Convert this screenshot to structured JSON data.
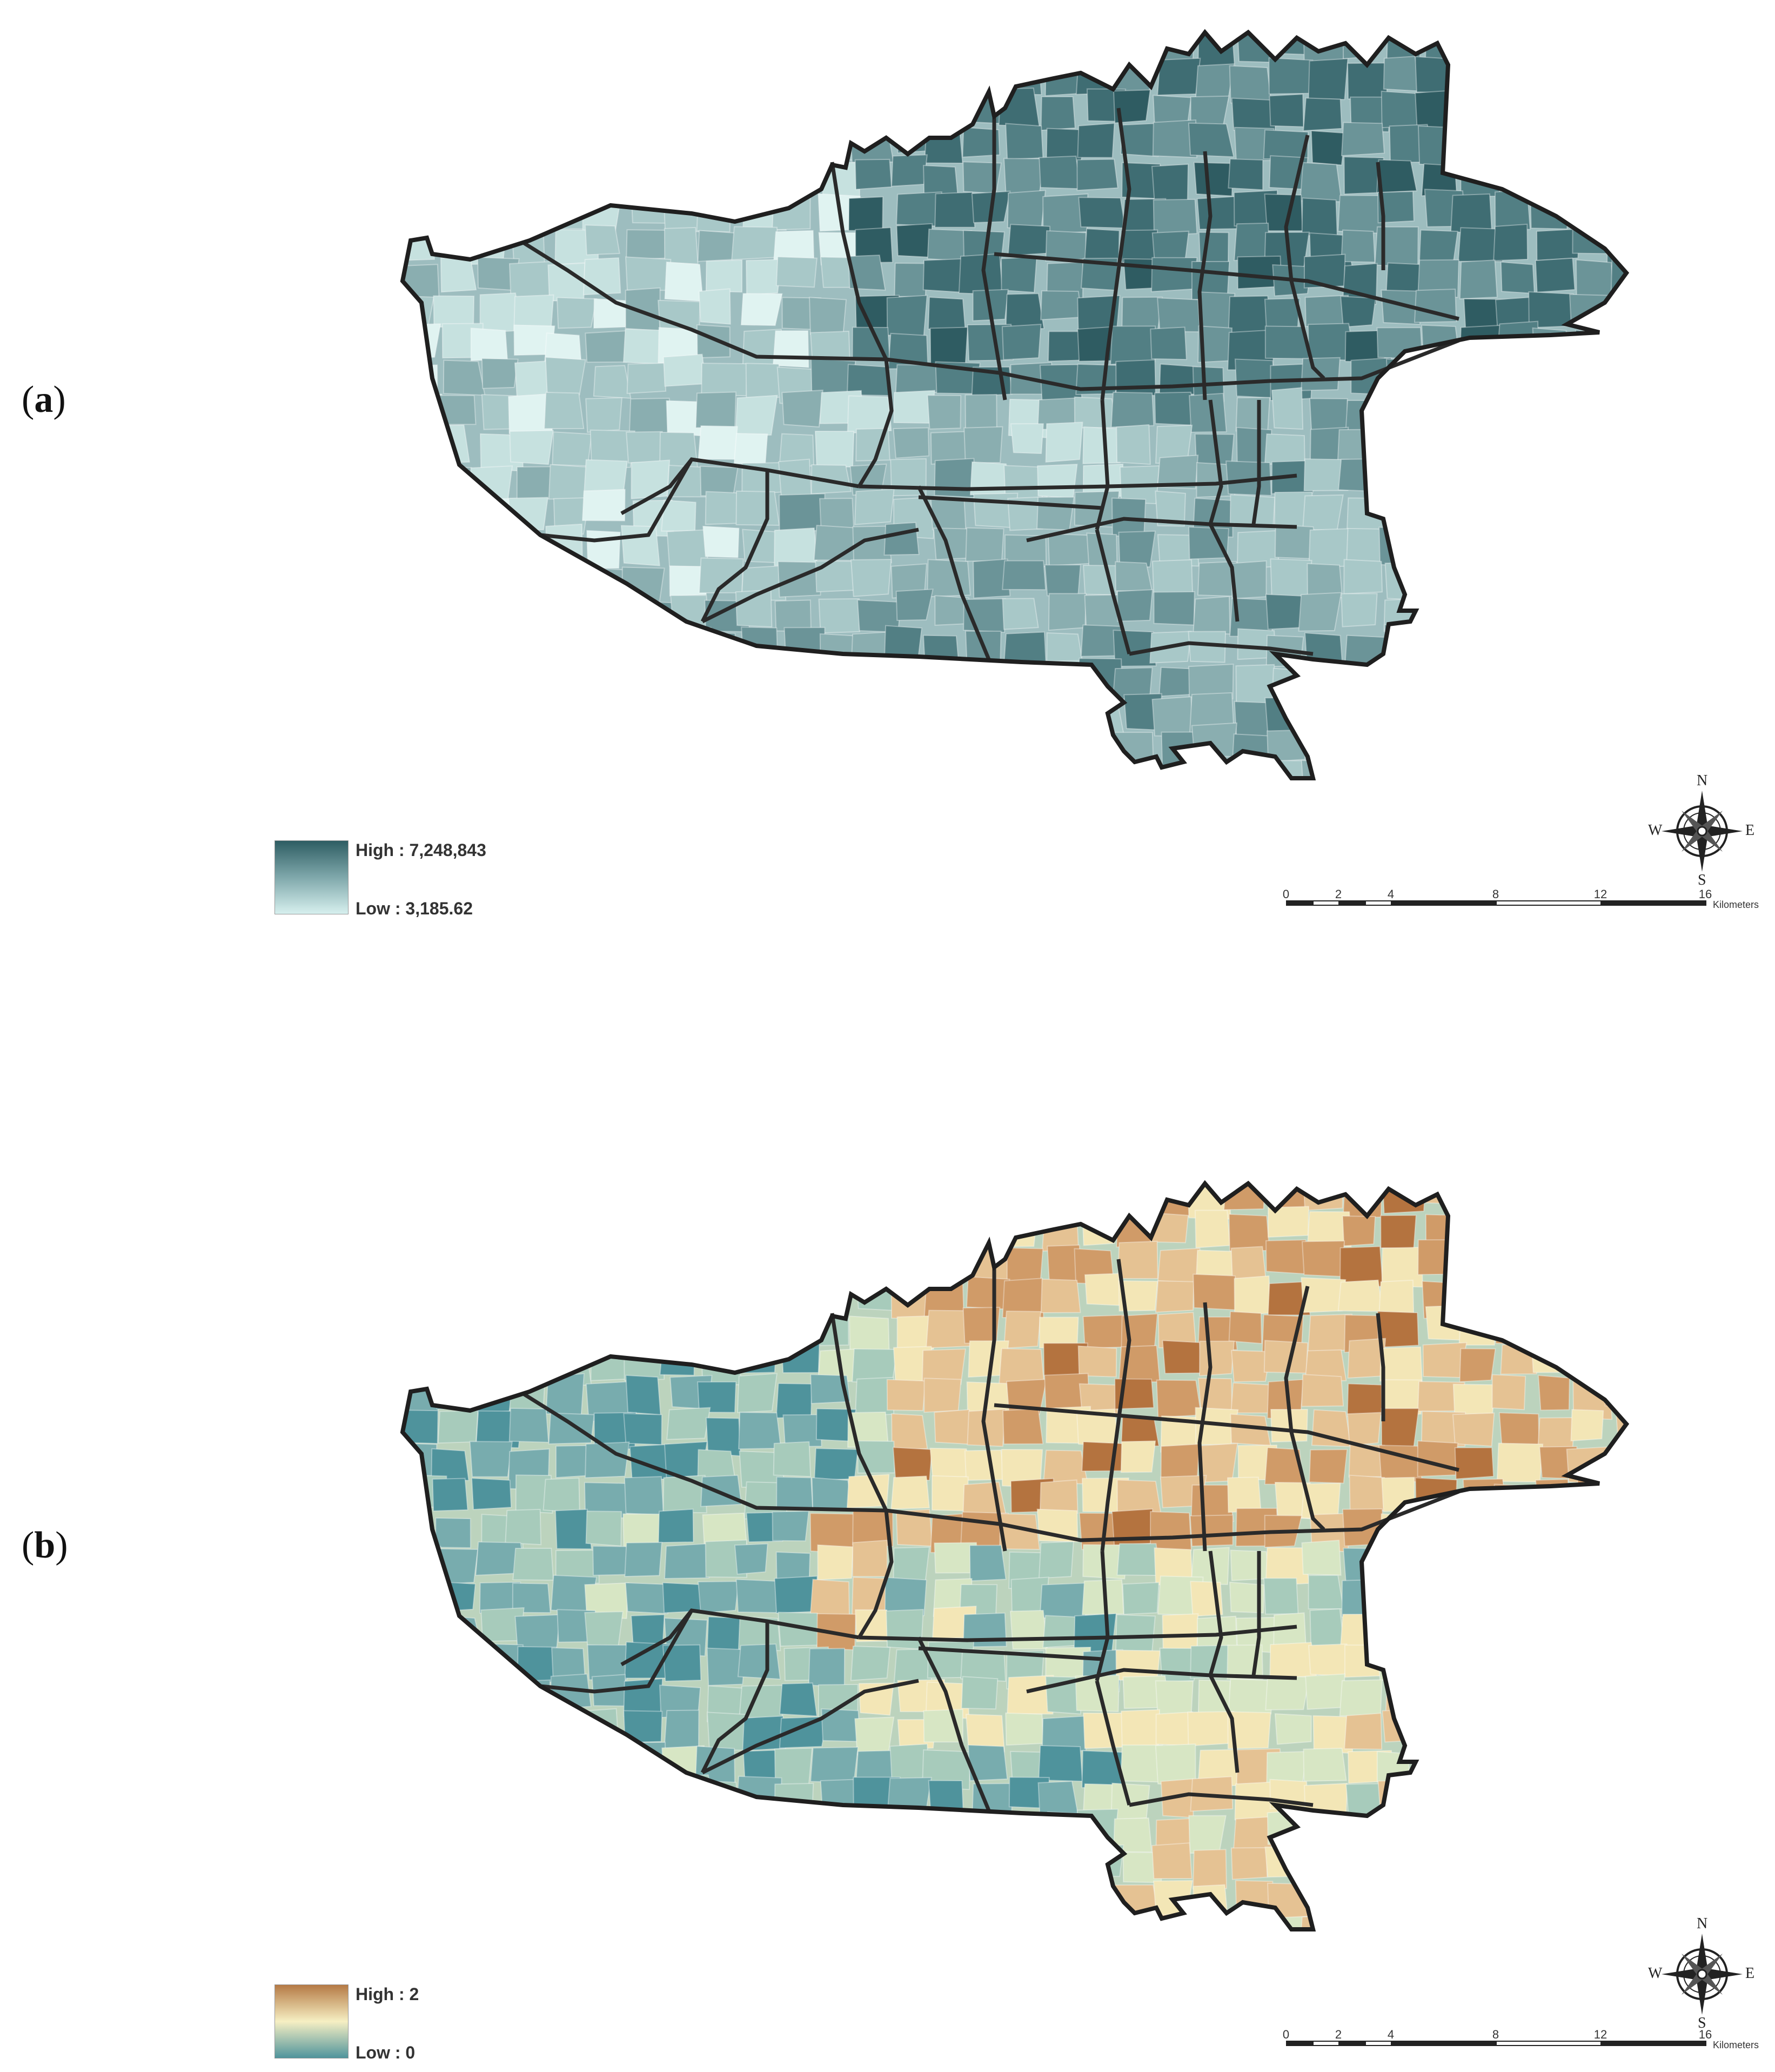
{
  "panels": [
    {
      "label": "a",
      "legend": {
        "high": "High : 7,248,843",
        "low": "Low : 3,185.62",
        "color_high": "#2e5d63",
        "color_mid": "#7fa8ab",
        "color_low": "#d7f0ee"
      },
      "palette": [
        "#2f5c62",
        "#3f6d73",
        "#527f84",
        "#6b9498",
        "#8aaeb0",
        "#a8c8c8",
        "#c6e1df",
        "#e0f3f1"
      ]
    },
    {
      "label": "b",
      "legend": {
        "high": "High : 2",
        "low": "Low : 0",
        "color_high": "#b57a45",
        "color_mid": "#f6efc3",
        "color_low": "#4f949c"
      },
      "palette": [
        "#b4733f",
        "#d09b68",
        "#e5c293",
        "#f3e6b6",
        "#d7e6c4",
        "#a7cbbb",
        "#78acae",
        "#4f939c"
      ]
    }
  ],
  "compass": {
    "n": "N",
    "s": "S",
    "e": "E",
    "w": "W"
  },
  "scale": {
    "ticks": [
      "0",
      "2",
      "4",
      "8",
      "12",
      "16"
    ],
    "unit": "Kilometers"
  }
}
